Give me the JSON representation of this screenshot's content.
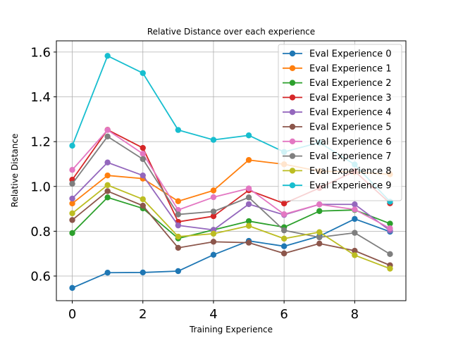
{
  "chart_data": {
    "type": "line",
    "title": "Relative Distance over each experience",
    "xlabel": "Training Experience",
    "ylabel": "Relative Distance",
    "x": [
      0,
      1,
      2,
      3,
      4,
      5,
      6,
      7,
      8,
      9
    ],
    "xlim": [
      -0.45,
      9.45
    ],
    "ylim": [
      0.49,
      1.65
    ],
    "xticks": [
      "0",
      "2",
      "4",
      "6",
      "8"
    ],
    "yticks": [
      "0.6",
      "0.8",
      "1.0",
      "1.2",
      "1.4",
      "1.6"
    ],
    "grid": true,
    "legend_position": "top-right",
    "series": [
      {
        "name": "Eval Experience 0",
        "color": "#1f77b4",
        "values": [
          0.547,
          0.615,
          0.616,
          0.622,
          0.695,
          0.757,
          0.733,
          0.778,
          0.855,
          0.798
        ]
      },
      {
        "name": "Eval Experience 1",
        "color": "#ff7f0e",
        "values": [
          0.924,
          1.049,
          1.035,
          0.934,
          0.982,
          1.118,
          1.099,
          1.068,
          1.064,
          1.054
        ]
      },
      {
        "name": "Eval Experience 2",
        "color": "#2ca02c",
        "values": [
          0.792,
          0.951,
          0.902,
          0.768,
          0.806,
          0.845,
          0.818,
          0.89,
          0.895,
          0.834
        ]
      },
      {
        "name": "Eval Experience 3",
        "color": "#d62728",
        "values": [
          1.03,
          1.253,
          1.172,
          0.842,
          0.867,
          0.983,
          0.924,
          0.993,
          1.068,
          0.925
        ]
      },
      {
        "name": "Eval Experience 4",
        "color": "#9467bd",
        "values": [
          0.946,
          1.107,
          1.049,
          0.826,
          0.806,
          0.921,
          0.873,
          0.92,
          0.92,
          0.803
        ]
      },
      {
        "name": "Eval Experience 5",
        "color": "#8c564b",
        "values": [
          0.85,
          0.979,
          0.914,
          0.726,
          0.753,
          0.749,
          0.701,
          0.745,
          0.713,
          0.648
        ]
      },
      {
        "name": "Eval Experience 6",
        "color": "#e377c2",
        "values": [
          1.074,
          1.252,
          1.146,
          0.895,
          0.952,
          0.991,
          0.876,
          0.92,
          0.897,
          0.813
        ]
      },
      {
        "name": "Eval Experience 7",
        "color": "#7f7f7f",
        "values": [
          1.012,
          1.223,
          1.122,
          0.875,
          0.888,
          0.951,
          0.804,
          0.773,
          0.793,
          0.698
        ]
      },
      {
        "name": "Eval Experience 8",
        "color": "#bcbd22",
        "values": [
          0.88,
          1.006,
          0.943,
          0.776,
          0.789,
          0.824,
          0.767,
          0.796,
          0.693,
          0.633
        ]
      },
      {
        "name": "Eval Experience 9",
        "color": "#17becf",
        "values": [
          1.182,
          1.583,
          1.506,
          1.252,
          1.208,
          1.228,
          1.154,
          1.196,
          1.098,
          0.932
        ]
      }
    ]
  }
}
